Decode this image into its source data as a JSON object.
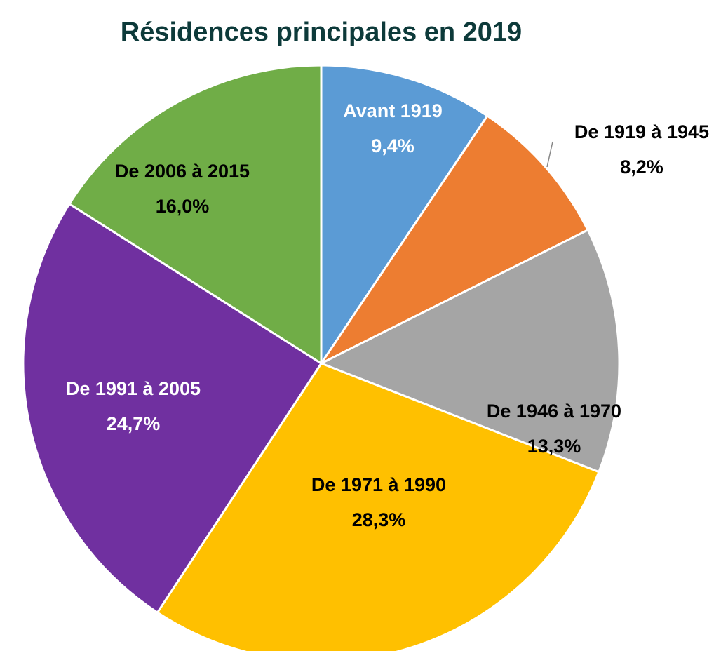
{
  "chart_data": {
    "type": "pie",
    "title": "Résidences principales en 2019",
    "categories": [
      "Avant 1919",
      "De 1919 à 1945",
      "De 1946 à 1970",
      "De 1971 à 1990",
      "De 1991 à 2005",
      "De 2006 à 2015"
    ],
    "values": [
      9.4,
      8.2,
      13.3,
      28.3,
      24.7,
      16.0
    ],
    "value_labels": [
      "9,4%",
      "8,2%",
      "13,3%",
      "28,3%",
      "24,7%",
      "16,0%"
    ],
    "colors": [
      "#5b9bd5",
      "#ed7d31",
      "#a5a5a5",
      "#ffc000",
      "#7030a0",
      "#70ad47"
    ]
  }
}
